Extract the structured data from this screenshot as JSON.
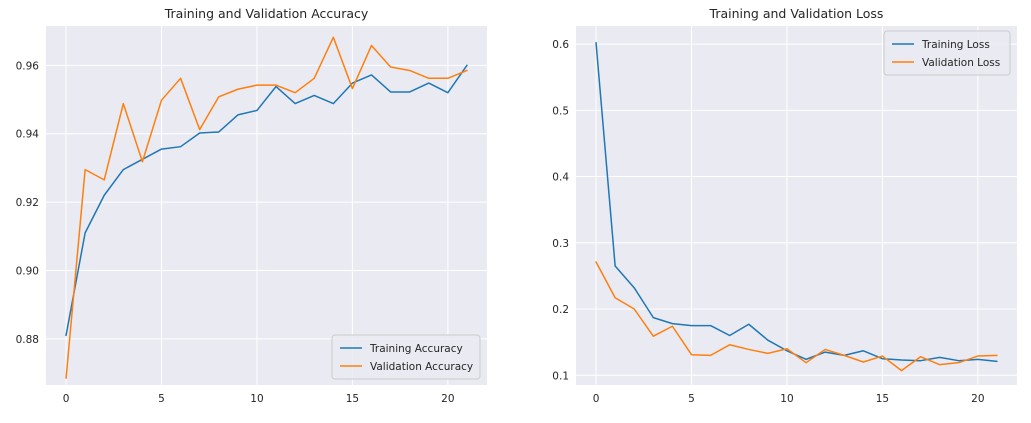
{
  "chart_data": [
    {
      "type": "line",
      "title": "Training and Validation Accuracy",
      "xlabel": "",
      "ylabel": "",
      "x": [
        0,
        1,
        2,
        3,
        4,
        5,
        6,
        7,
        8,
        9,
        10,
        11,
        12,
        13,
        14,
        15,
        16,
        17,
        18,
        19,
        20,
        21
      ],
      "xlim": [
        -1.05,
        22.05
      ],
      "ylim": [
        0.8665,
        0.9715
      ],
      "xticks": [
        0,
        5,
        10,
        15,
        20
      ],
      "yticks": [
        0.88,
        0.9,
        0.92,
        0.94,
        0.96
      ],
      "ytick_labels": [
        "0.88",
        "0.90",
        "0.92",
        "0.94",
        "0.96"
      ],
      "grid": true,
      "legend_position": "lower-right",
      "series": [
        {
          "name": "Training Accuracy",
          "color": "#1f77b4",
          "values": [
            0.881,
            0.911,
            0.922,
            0.9295,
            0.9325,
            0.9355,
            0.9362,
            0.9402,
            0.9405,
            0.9455,
            0.9468,
            0.9538,
            0.9488,
            0.9512,
            0.9488,
            0.9548,
            0.9572,
            0.9522,
            0.9522,
            0.9548,
            0.952,
            0.96
          ]
        },
        {
          "name": "Validation Accuracy",
          "color": "#ff7f0e",
          "values": [
            0.8685,
            0.9295,
            0.9265,
            0.9488,
            0.9318,
            0.9498,
            0.9562,
            0.9412,
            0.9508,
            0.953,
            0.9542,
            0.9542,
            0.952,
            0.9562,
            0.9682,
            0.9532,
            0.9658,
            0.9595,
            0.9585,
            0.9562,
            0.9562,
            0.9585
          ]
        }
      ]
    },
    {
      "type": "line",
      "title": "Training and Validation Loss",
      "xlabel": "",
      "ylabel": "",
      "x": [
        0,
        1,
        2,
        3,
        4,
        5,
        6,
        7,
        8,
        9,
        10,
        11,
        12,
        13,
        14,
        15,
        16,
        17,
        18,
        19,
        20,
        21
      ],
      "xlim": [
        -1.05,
        22.05
      ],
      "ylim": [
        0.0853,
        0.6273
      ],
      "xticks": [
        0,
        5,
        10,
        15,
        20
      ],
      "yticks": [
        0.1,
        0.2,
        0.3,
        0.4,
        0.5,
        0.6
      ],
      "ytick_labels": [
        "0.1",
        "0.2",
        "0.3",
        "0.4",
        "0.5",
        "0.6"
      ],
      "grid": true,
      "legend_position": "upper-right",
      "series": [
        {
          "name": "Training Loss",
          "color": "#1f77b4",
          "values": [
            0.602,
            0.265,
            0.232,
            0.187,
            0.178,
            0.175,
            0.175,
            0.16,
            0.177,
            0.153,
            0.137,
            0.124,
            0.135,
            0.13,
            0.137,
            0.125,
            0.123,
            0.122,
            0.127,
            0.122,
            0.124,
            0.121
          ]
        },
        {
          "name": "Validation Loss",
          "color": "#ff7f0e",
          "values": [
            0.271,
            0.217,
            0.2,
            0.159,
            0.174,
            0.131,
            0.13,
            0.146,
            0.139,
            0.133,
            0.14,
            0.119,
            0.139,
            0.13,
            0.12,
            0.129,
            0.107,
            0.128,
            0.116,
            0.119,
            0.129,
            0.13
          ]
        }
      ]
    }
  ]
}
